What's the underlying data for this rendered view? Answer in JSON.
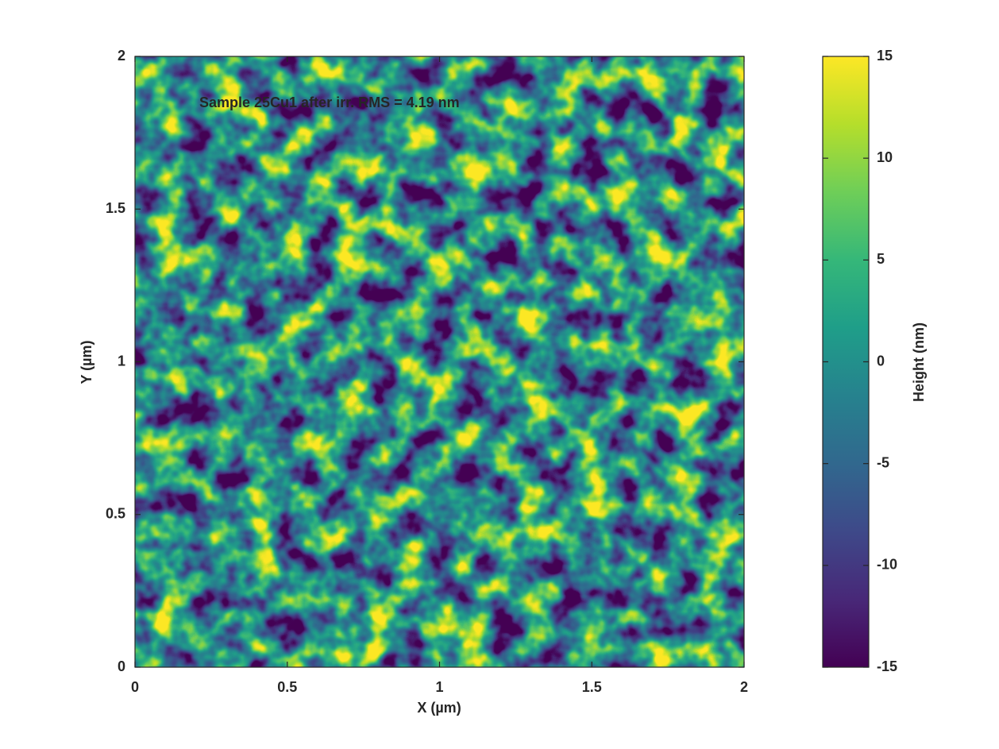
{
  "chart_data": {
    "type": "heatmap",
    "annotation": "Sample 25Cu1 after irr.  RMS = 4.19 nm",
    "annotation_color": "#0000ff",
    "xlabel": "X (µm)",
    "ylabel": "Y (µm)",
    "colorbar_label": "Height (nm)",
    "xlim": [
      0,
      2
    ],
    "ylim": [
      0,
      2
    ],
    "xticks": [
      0,
      0.5,
      1,
      1.5,
      2
    ],
    "yticks": [
      0,
      0.5,
      1,
      1.5,
      2
    ],
    "zlim": [
      -15,
      15
    ],
    "zticks": [
      -15,
      -10,
      -5,
      0,
      5,
      10,
      15
    ],
    "colormap": [
      "#440154",
      "#482878",
      "#3e4989",
      "#31688e",
      "#26828e",
      "#1f9e89",
      "#35b779",
      "#6ece58",
      "#b5de2b",
      "#fde725"
    ]
  }
}
